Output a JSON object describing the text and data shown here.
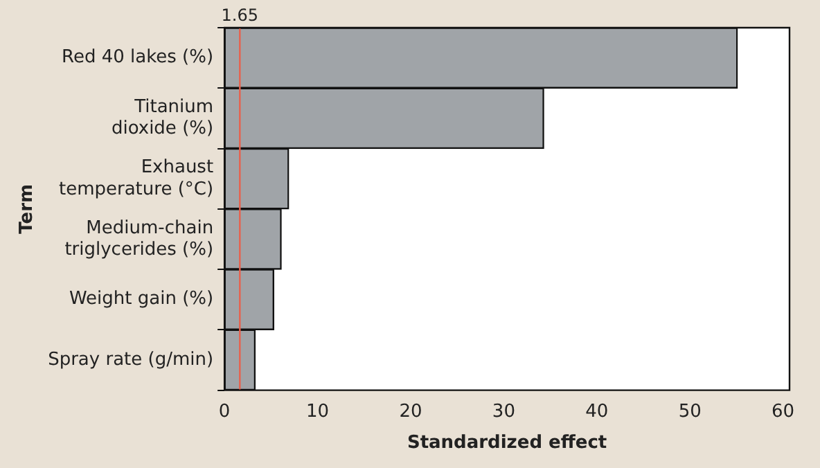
{
  "chart_data": {
    "type": "bar",
    "orientation": "horizontal",
    "xlabel": "Standardized effect",
    "ylabel": "Term",
    "categories": [
      "Red 40 lakes (%)",
      "Titanium dioxide (%)",
      "Exhaust temperature (°C)",
      "Medium-chain triglycerides (%)",
      "Weight gain (%)",
      "Spray rate (g/min)"
    ],
    "values": [
      55.1,
      34.3,
      6.9,
      6.1,
      5.3,
      3.3
    ],
    "color": "#a0a4a8",
    "xlim": [
      0,
      60.7
    ],
    "xticks": [
      0,
      10,
      20,
      30,
      40,
      50,
      60
    ],
    "ref_lines": [
      {
        "axis": "x",
        "value": 1.65,
        "label": "1.65",
        "color": "#e8604c"
      }
    ],
    "grid": false,
    "legend": false
  }
}
